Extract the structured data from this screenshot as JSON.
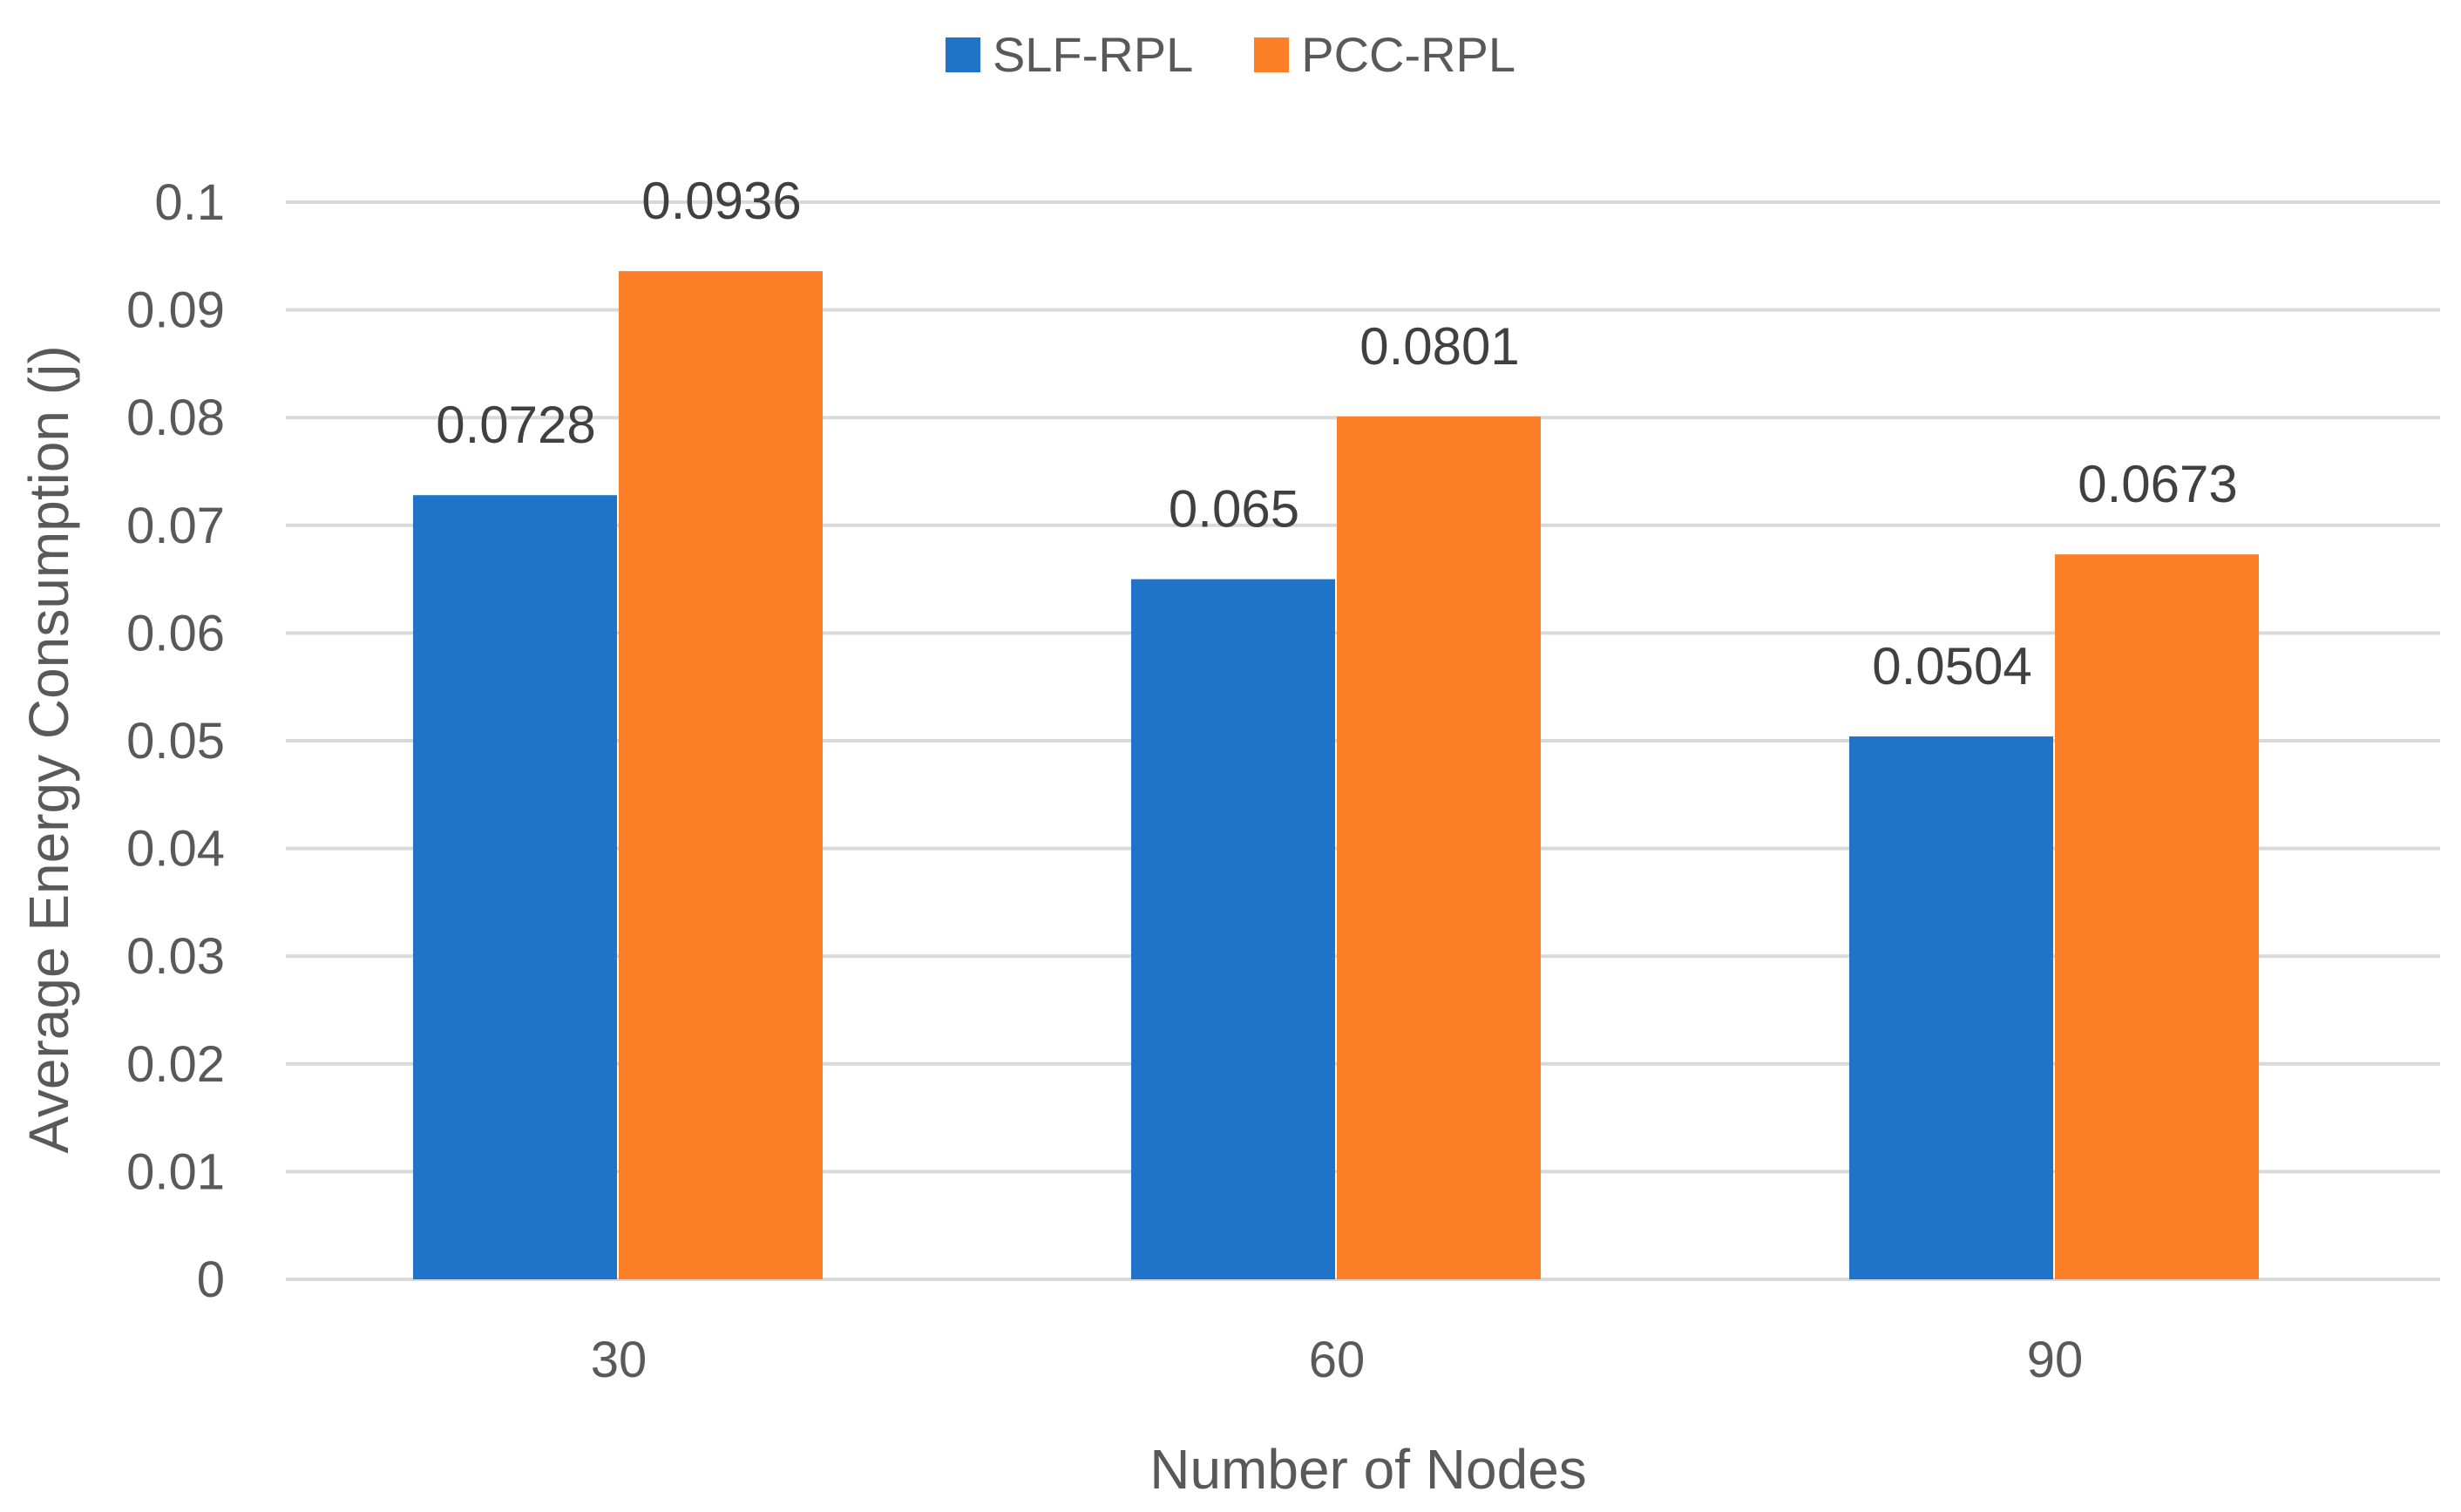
{
  "chart_data": {
    "type": "bar",
    "title": "",
    "xlabel": "Number of Nodes",
    "ylabel": "Average Energy Consumption (j)",
    "categories": [
      "30",
      "60",
      "90"
    ],
    "series": [
      {
        "name": "SLF-RPL",
        "color": "#1f74c9",
        "values": [
          0.0728,
          0.065,
          0.0504
        ],
        "labels": [
          "0.0728",
          "0.065",
          "0.0504"
        ]
      },
      {
        "name": "PCC-RPL",
        "color": "#fd7f27",
        "values": [
          0.0936,
          0.0801,
          0.0673
        ],
        "labels": [
          "0.0936",
          "0.0801",
          "0.0673"
        ]
      }
    ],
    "ylim": [
      0,
      0.1
    ],
    "yticks": [
      "0",
      "0.01",
      "0.02",
      "0.03",
      "0.04",
      "0.05",
      "0.06",
      "0.07",
      "0.08",
      "0.09",
      "0.1"
    ],
    "grid": true,
    "legend_position": "top-center"
  }
}
